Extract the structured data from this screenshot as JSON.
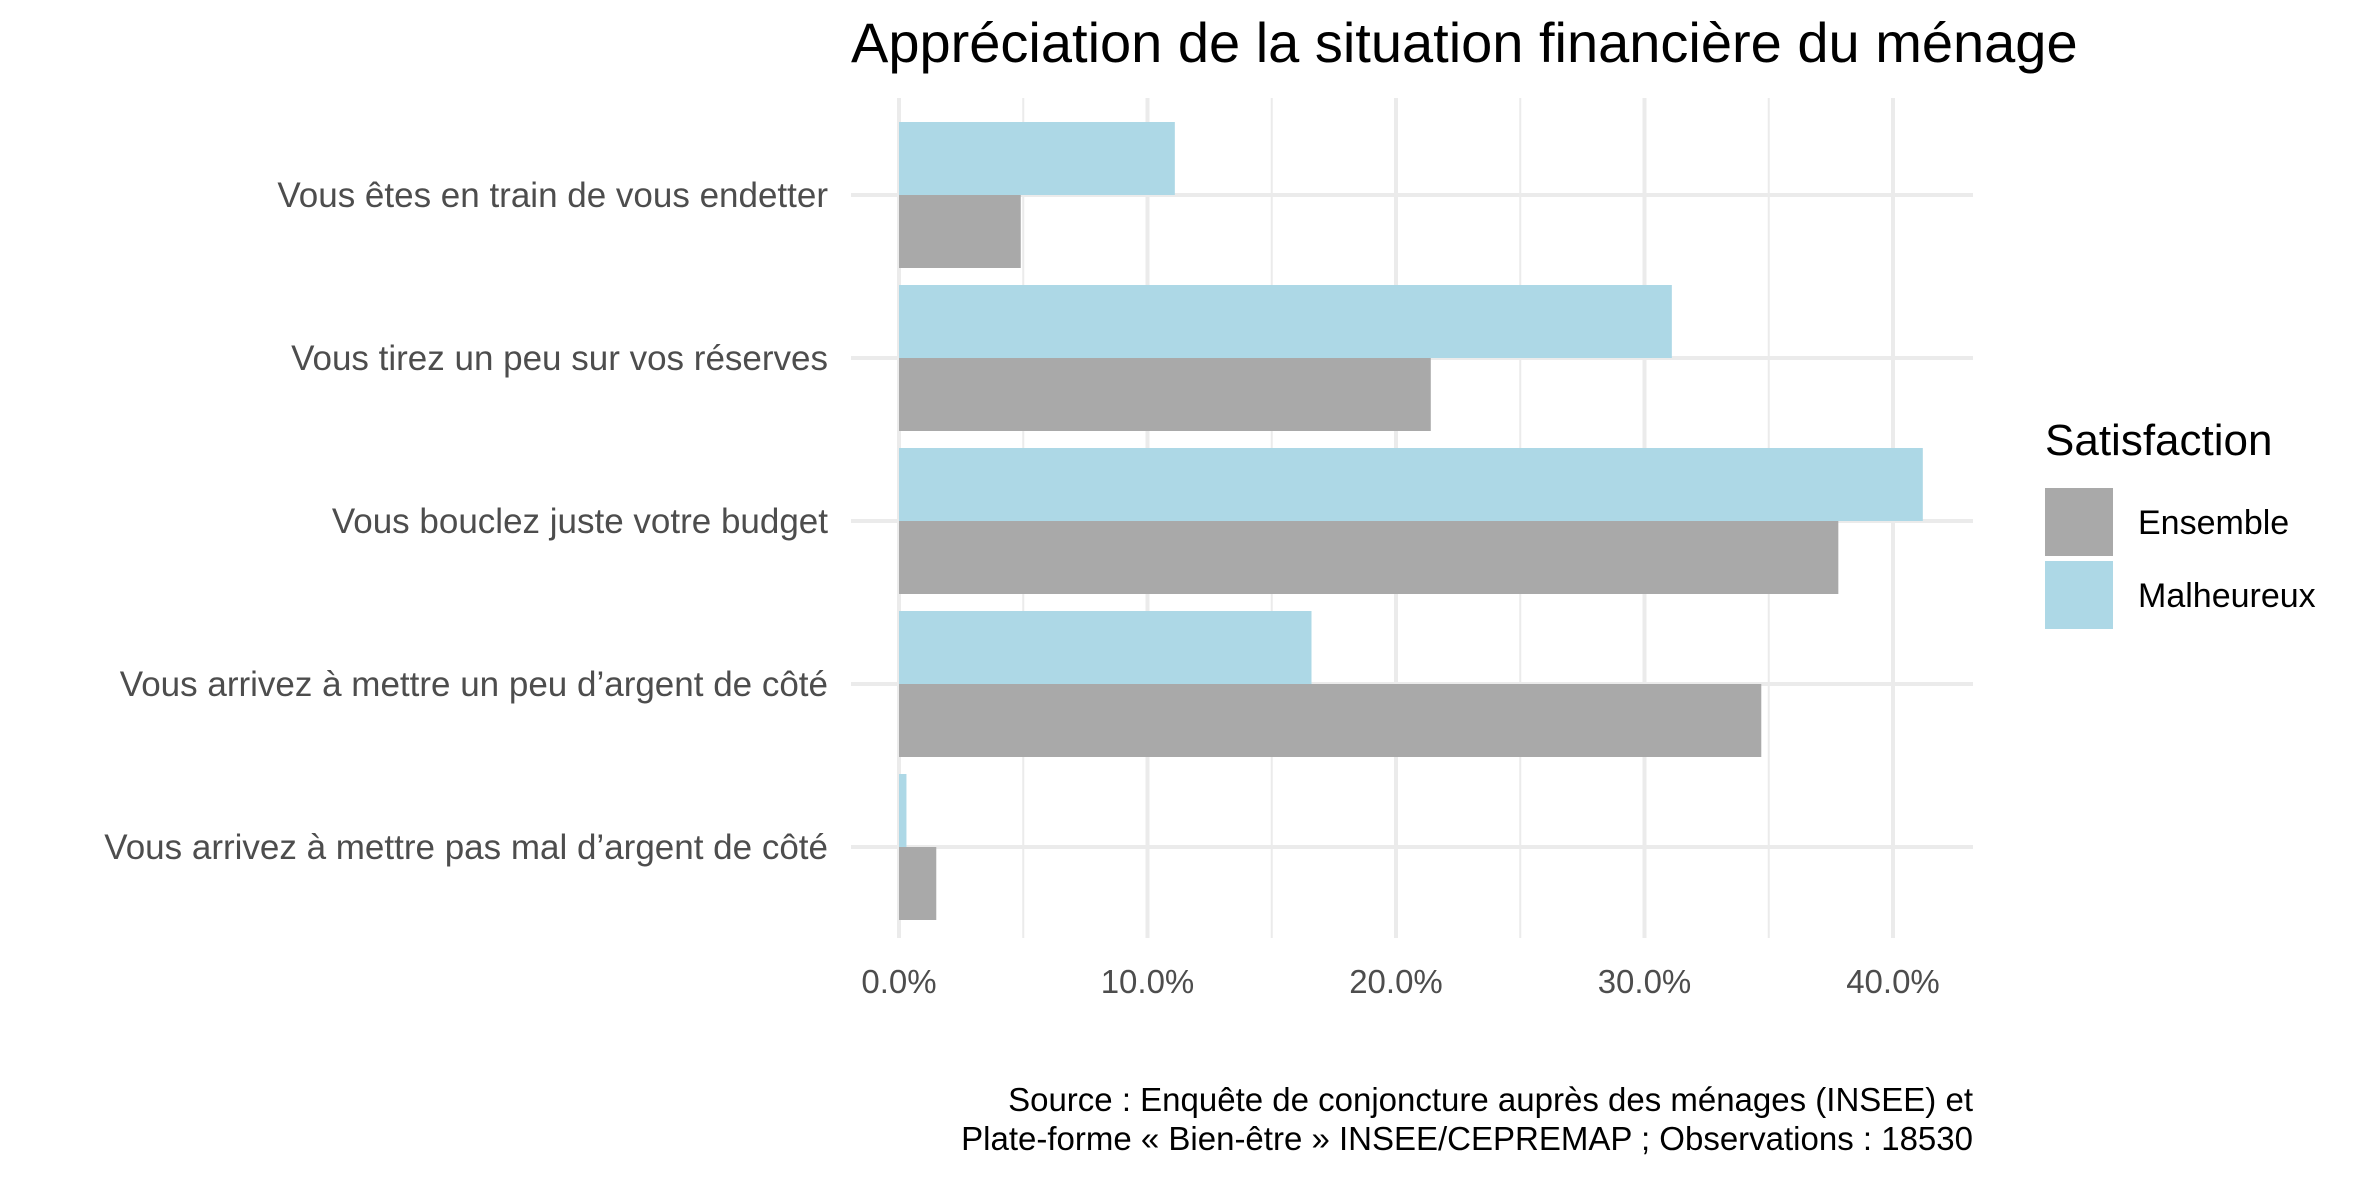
{
  "chart_data": {
    "type": "bar",
    "orientation": "horizontal",
    "title": "Appréciation de la situation financière du ménage",
    "categories": [
      "Vous êtes en train de vous endetter",
      "Vous tirez un peu sur vos réserves",
      "Vous bouclez juste votre budget",
      "Vous arrivez à mettre un peu d’argent de côté",
      "Vous arrivez à mettre pas mal d’argent de côté"
    ],
    "series": [
      {
        "name": "Ensemble",
        "color": "#a9a9a9",
        "values": [
          4.9,
          21.4,
          37.8,
          34.7,
          1.5
        ]
      },
      {
        "name": "Malheureux",
        "color": "#add8e6",
        "values": [
          11.1,
          31.1,
          41.2,
          16.6,
          0.3
        ]
      }
    ],
    "xlim": [
      0,
      43
    ],
    "x_ticks": [
      0,
      10,
      20,
      30,
      40
    ],
    "x_tick_labels": [
      "0.0%",
      "10.0%",
      "20.0%",
      "30.0%",
      "40.0%"
    ],
    "grid": true,
    "legend": {
      "title": "Satisfaction",
      "position": "right",
      "items": [
        "Ensemble",
        "Malheureux"
      ]
    },
    "caption": [
      "Source : Enquête de conjoncture auprès des ménages (INSEE) et",
      "Plate-forme « Bien-être » INSEE/CEPREMAP ; Observations : 18530"
    ]
  }
}
